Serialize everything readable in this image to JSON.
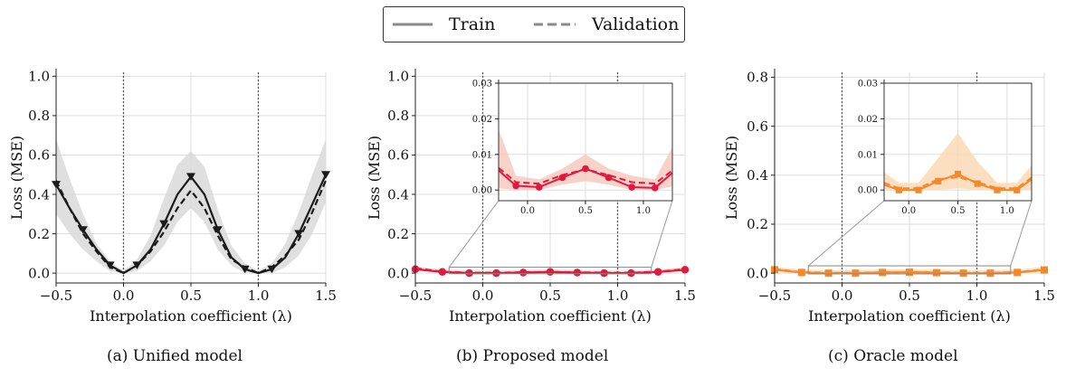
{
  "legend": {
    "train_label": "Train",
    "validation_label": "Validation"
  },
  "colors": {
    "unified": "#1a1a1a",
    "unified_band": "#d9d9d9",
    "proposed": "#e0193f",
    "proposed_band": "#f7c9bf",
    "oracle": "#f5892a",
    "oracle_band": "#fbd9b6",
    "grid": "#dedede",
    "vline": "#555555"
  },
  "captions": {
    "a": "(a) Unified model",
    "b": "(b) Proposed model",
    "c": "(c) Oracle model"
  },
  "chart_data": [
    {
      "type": "line",
      "title": "(a) Unified model",
      "xlabel": "Interpolation coefficient (λ)",
      "ylabel": "Loss (MSE)",
      "xlim": [
        -0.5,
        1.5
      ],
      "ylim": [
        -0.05,
        1.02
      ],
      "xticks": [
        "−0.5",
        "0.0",
        "0.5",
        "1.0",
        "1.5"
      ],
      "yticks": [
        "0.0",
        "0.2",
        "0.4",
        "0.6",
        "0.8",
        "1.0"
      ],
      "grid": true,
      "vlines": [
        0.0,
        1.0
      ],
      "marker": "triangle-down",
      "x": [
        -0.5,
        -0.4,
        -0.3,
        -0.2,
        -0.1,
        0.0,
        0.1,
        0.2,
        0.3,
        0.4,
        0.5,
        0.6,
        0.7,
        0.8,
        0.9,
        1.0,
        1.1,
        1.2,
        1.3,
        1.4,
        1.5
      ],
      "series": [
        {
          "name": "Train",
          "style": "solid",
          "values": [
            0.45,
            0.33,
            0.22,
            0.12,
            0.04,
            0.0,
            0.04,
            0.12,
            0.25,
            0.4,
            0.49,
            0.4,
            0.22,
            0.08,
            0.02,
            0.0,
            0.02,
            0.08,
            0.2,
            0.35,
            0.5
          ]
        },
        {
          "name": "Validation",
          "style": "dashed",
          "values": [
            0.47,
            0.33,
            0.2,
            0.11,
            0.03,
            0.0,
            0.04,
            0.11,
            0.21,
            0.33,
            0.42,
            0.33,
            0.19,
            0.07,
            0.03,
            0.0,
            0.03,
            0.09,
            0.17,
            0.31,
            0.47
          ]
        }
      ],
      "markers_x": [
        -0.5,
        -0.3,
        -0.1,
        0.1,
        0.3,
        0.5,
        0.7,
        0.9,
        1.1,
        1.3,
        1.5
      ],
      "band_upper": [
        0.68,
        0.48,
        0.3,
        0.15,
        0.06,
        0.01,
        0.07,
        0.19,
        0.38,
        0.55,
        0.62,
        0.54,
        0.32,
        0.14,
        0.05,
        0.01,
        0.05,
        0.15,
        0.31,
        0.5,
        0.68
      ],
      "band_lower": [
        0.3,
        0.2,
        0.12,
        0.06,
        0.01,
        0.0,
        0.01,
        0.06,
        0.14,
        0.26,
        0.33,
        0.26,
        0.12,
        0.04,
        0.0,
        0.0,
        0.0,
        0.03,
        0.09,
        0.2,
        0.36
      ]
    },
    {
      "type": "line",
      "title": "(b) Proposed model",
      "xlabel": "Interpolation coefficient (λ)",
      "ylabel": "Loss (MSE)",
      "xlim": [
        -0.5,
        1.5
      ],
      "ylim": [
        -0.05,
        1.02
      ],
      "xticks": [
        "−0.5",
        "0.0",
        "0.5",
        "1.0",
        "1.5"
      ],
      "yticks": [
        "0.0",
        "0.2",
        "0.4",
        "0.6",
        "0.8",
        "1.0"
      ],
      "grid": true,
      "vlines": [
        0.0,
        1.0
      ],
      "marker": "circle",
      "x": [
        -0.5,
        -0.3,
        -0.1,
        0.1,
        0.3,
        0.5,
        0.7,
        0.9,
        1.1,
        1.3,
        1.5
      ],
      "series": [
        {
          "name": "Train",
          "style": "solid",
          "values": [
            0.02,
            0.006,
            0.0,
            0.0,
            0.003,
            0.006,
            0.003,
            0.0,
            0.0,
            0.006,
            0.017
          ]
        },
        {
          "name": "Validation",
          "style": "dashed",
          "values": [
            0.025,
            0.007,
            0.002,
            0.002,
            0.004,
            0.006,
            0.004,
            0.002,
            0.002,
            0.007,
            0.02
          ]
        }
      ],
      "inset": {
        "xlim": [
          -0.25,
          1.25
        ],
        "ylim": [
          -0.003,
          0.03
        ],
        "xticks": [
          "0.0",
          "0.5",
          "1.0"
        ],
        "yticks": [
          "0.00",
          "0.01",
          "0.02",
          "0.03"
        ],
        "x": [
          -0.25,
          -0.1,
          0.1,
          0.3,
          0.5,
          0.7,
          0.9,
          1.1,
          1.25
        ],
        "train": [
          0.0055,
          0.0012,
          0.0008,
          0.0035,
          0.006,
          0.0035,
          0.0008,
          0.0006,
          0.0048
        ],
        "validation": [
          0.0062,
          0.0022,
          0.0018,
          0.0042,
          0.0058,
          0.0042,
          0.0022,
          0.0018,
          0.0055
        ],
        "markers_x": [
          -0.1,
          0.1,
          0.3,
          0.5,
          0.7,
          0.9,
          1.1
        ],
        "band_upper": [
          0.017,
          0.004,
          0.003,
          0.006,
          0.01,
          0.006,
          0.004,
          0.003,
          0.012
        ],
        "band_lower": [
          0.0005,
          0.0,
          0.0,
          0.0015,
          0.0025,
          0.0015,
          0.0,
          0.0,
          0.001
        ]
      }
    },
    {
      "type": "line",
      "title": "(c) Oracle model",
      "xlabel": "Interpolation coefficient (λ)",
      "ylabel": "Loss (MSE)",
      "xlim": [
        -0.5,
        1.5
      ],
      "ylim": [
        -0.04,
        0.82
      ],
      "xticks": [
        "−0.5",
        "0.0",
        "0.5",
        "1.0",
        "1.5"
      ],
      "yticks": [
        "0.0",
        "0.2",
        "0.4",
        "0.6",
        "0.8"
      ],
      "grid": true,
      "vlines": [
        0.0,
        1.0
      ],
      "marker": "square",
      "x": [
        -0.5,
        -0.3,
        -0.1,
        0.1,
        0.3,
        0.5,
        0.7,
        0.9,
        1.1,
        1.3,
        1.5
      ],
      "series": [
        {
          "name": "Train",
          "style": "solid",
          "values": [
            0.014,
            0.003,
            0.0,
            0.0,
            0.003,
            0.004,
            0.002,
            0.0,
            0.0,
            0.003,
            0.013
          ]
        },
        {
          "name": "Validation",
          "style": "dashed",
          "values": [
            0.016,
            0.004,
            0.001,
            0.001,
            0.003,
            0.004,
            0.003,
            0.001,
            0.001,
            0.004,
            0.015
          ]
        }
      ],
      "inset": {
        "xlim": [
          -0.25,
          1.25
        ],
        "ylim": [
          -0.003,
          0.03
        ],
        "xticks": [
          "0.0",
          "0.5",
          "1.0"
        ],
        "yticks": [
          "0.00",
          "0.01",
          "0.02",
          "0.03"
        ],
        "x": [
          -0.25,
          -0.1,
          0.1,
          0.3,
          0.5,
          0.7,
          0.9,
          1.1,
          1.25
        ],
        "train": [
          0.0015,
          0.0,
          0.0,
          0.0025,
          0.0045,
          0.0018,
          0.0,
          0.0,
          0.003
        ],
        "validation": [
          0.002,
          0.0005,
          0.0005,
          0.003,
          0.0036,
          0.0022,
          0.0005,
          0.0005,
          0.0035
        ],
        "markers_x": [
          -0.1,
          0.1,
          0.3,
          0.5,
          0.7,
          0.9,
          1.1
        ],
        "band_upper": [
          0.005,
          0.002,
          0.002,
          0.009,
          0.016,
          0.008,
          0.002,
          0.002,
          0.007
        ],
        "band_lower": [
          0.0,
          0.0,
          0.0,
          0.0,
          0.0005,
          0.0,
          0.0,
          0.0,
          0.0
        ]
      }
    }
  ]
}
